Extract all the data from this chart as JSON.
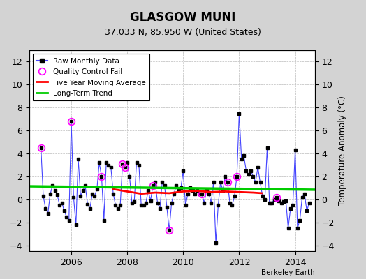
{
  "title": "GLASGOW MUNI",
  "subtitle": "37.033 N, 85.950 W (United States)",
  "ylabel_right": "Temperature Anomaly (°C)",
  "attribution": "Berkeley Earth",
  "background_color": "#d3d3d3",
  "plot_bg_color": "#ffffff",
  "ylim": [
    -4.5,
    13
  ],
  "yticks": [
    -4,
    -2,
    0,
    2,
    4,
    6,
    8,
    10,
    12
  ],
  "xlim": [
    2004.5,
    2014.7
  ],
  "xticks": [
    2006,
    2008,
    2010,
    2012,
    2014
  ],
  "raw_color": "#4444ff",
  "raw_marker_color": "#000000",
  "qc_color": "#ff00ff",
  "ma_color": "#ff0000",
  "trend_color": "#00cc00",
  "months": [
    2004.917,
    2005.0,
    2005.083,
    2005.167,
    2005.25,
    2005.333,
    2005.417,
    2005.5,
    2005.583,
    2005.667,
    2005.75,
    2005.833,
    2005.917,
    2006.0,
    2006.083,
    2006.167,
    2006.25,
    2006.333,
    2006.417,
    2006.5,
    2006.583,
    2006.667,
    2006.75,
    2006.833,
    2006.917,
    2007.0,
    2007.083,
    2007.167,
    2007.25,
    2007.333,
    2007.417,
    2007.5,
    2007.583,
    2007.667,
    2007.75,
    2007.833,
    2007.917,
    2008.0,
    2008.083,
    2008.167,
    2008.25,
    2008.333,
    2008.417,
    2008.5,
    2008.583,
    2008.667,
    2008.75,
    2008.833,
    2008.917,
    2009.0,
    2009.083,
    2009.167,
    2009.25,
    2009.333,
    2009.417,
    2009.5,
    2009.583,
    2009.667,
    2009.75,
    2009.833,
    2009.917,
    2010.0,
    2010.083,
    2010.167,
    2010.25,
    2010.333,
    2010.417,
    2010.5,
    2010.583,
    2010.667,
    2010.75,
    2010.833,
    2010.917,
    2011.0,
    2011.083,
    2011.167,
    2011.25,
    2011.333,
    2011.417,
    2011.5,
    2011.583,
    2011.667,
    2011.75,
    2011.833,
    2011.917,
    2012.0,
    2012.083,
    2012.167,
    2012.25,
    2012.333,
    2012.417,
    2012.5,
    2012.583,
    2012.667,
    2012.75,
    2012.833,
    2012.917,
    2013.0,
    2013.083,
    2013.167,
    2013.25,
    2013.333,
    2013.417,
    2013.5,
    2013.583,
    2013.667,
    2013.75,
    2013.833,
    2013.917,
    2014.0,
    2014.083,
    2014.167,
    2014.25,
    2014.333,
    2014.417,
    2014.5
  ],
  "values": [
    4.5,
    0.3,
    -0.8,
    -1.2,
    0.5,
    1.2,
    0.8,
    0.4,
    -0.5,
    -0.3,
    -1.0,
    -1.5,
    -1.8,
    6.8,
    0.2,
    -2.2,
    3.5,
    0.3,
    0.8,
    1.2,
    -0.4,
    -0.8,
    0.5,
    0.3,
    0.9,
    3.2,
    2.0,
    -1.8,
    3.2,
    3.0,
    2.8,
    0.5,
    -0.5,
    -0.8,
    -0.5,
    3.1,
    2.8,
    3.2,
    2.0,
    -0.3,
    -0.2,
    3.2,
    3.0,
    -0.5,
    -0.5,
    -0.3,
    0.8,
    -0.1,
    1.2,
    1.5,
    -0.3,
    -0.8,
    1.5,
    1.2,
    -0.7,
    -2.7,
    -0.3,
    0.5,
    1.2,
    0.8,
    1.0,
    2.5,
    -0.5,
    0.5,
    1.0,
    0.8,
    0.5,
    0.8,
    0.5,
    0.5,
    -0.3,
    0.8,
    0.5,
    -0.3,
    1.5,
    -3.8,
    -0.5,
    1.5,
    0.8,
    2.0,
    1.5,
    -0.3,
    -0.5,
    0.3,
    2.0,
    7.5,
    3.5,
    3.8,
    2.5,
    2.2,
    2.5,
    2.0,
    1.5,
    2.8,
    1.5,
    0.3,
    0.0,
    4.5,
    -0.3,
    -0.3,
    0.0,
    0.2,
    -0.1,
    -0.3,
    -0.2,
    -0.1,
    -2.5,
    -0.8,
    -0.5,
    4.3,
    -2.5,
    -1.8,
    0.2,
    0.5,
    -1.0,
    -0.3
  ],
  "qc_fail_indices": [
    0,
    13,
    26,
    35,
    36,
    48,
    55,
    69,
    80,
    84,
    101
  ],
  "moving_avg_x": [
    2007.5,
    2008.0,
    2008.5,
    2009.0,
    2009.5,
    2010.0,
    2010.5,
    2011.0,
    2011.5,
    2012.0,
    2012.5,
    2012.8
  ],
  "moving_avg_y": [
    0.9,
    0.7,
    0.5,
    0.6,
    0.55,
    0.7,
    0.75,
    0.65,
    0.7,
    0.65,
    0.6,
    0.55
  ],
  "trend_x": [
    2004.5,
    2014.7
  ],
  "trend_y": [
    1.15,
    0.85
  ],
  "legend_entries": [
    "Raw Monthly Data",
    "Quality Control Fail",
    "Five Year Moving Average",
    "Long-Term Trend"
  ]
}
